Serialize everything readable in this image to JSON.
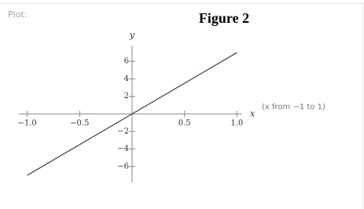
{
  "header": {
    "label": "Plot:"
  },
  "chart_data": {
    "type": "line",
    "title": "Figure 2",
    "x_label": "x",
    "y_label": "y",
    "annotation": "(x from −1 to 1)",
    "x": [
      -1,
      1
    ],
    "values": [
      -7,
      7
    ],
    "color": "#3c3f5e",
    "xlim": [
      -1.08,
      1.05
    ],
    "ylim": [
      -7.8,
      7.8
    ],
    "xticks": [
      {
        "value": -1,
        "label": "−1.0"
      },
      {
        "value": -0.5,
        "label": "−0.5"
      },
      0.5,
      {
        "value": 1,
        "label": "1.0"
      }
    ],
    "yticks": [
      {
        "value": -6,
        "label": "−6"
      },
      {
        "value": -4,
        "label": "−4"
      },
      {
        "value": -2,
        "label": "−2"
      },
      2,
      4,
      6
    ]
  }
}
